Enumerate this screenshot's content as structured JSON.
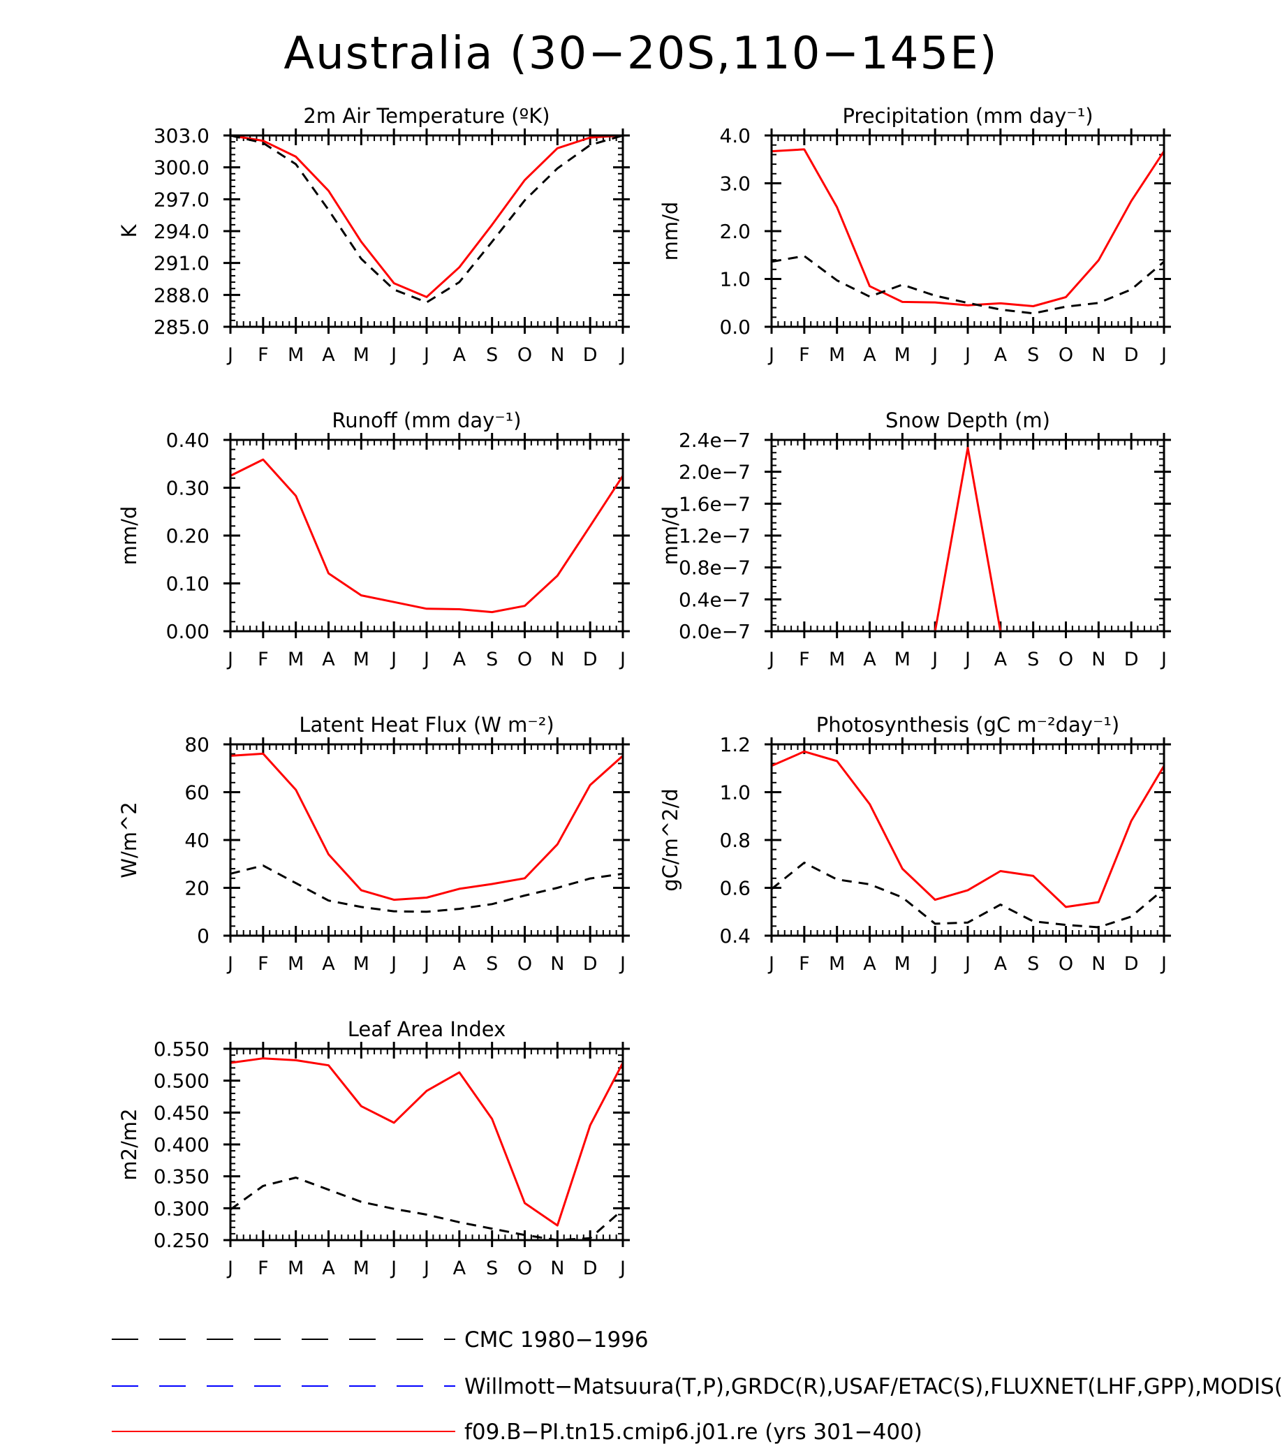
{
  "page_title": "Australia (30−20S,110−145E)",
  "month_ticks": [
    "J",
    "F",
    "M",
    "A",
    "M",
    "J",
    "J",
    "A",
    "S",
    "O",
    "N",
    "D",
    "J"
  ],
  "colors": {
    "cmc": "#000000",
    "obs": "#0000ff",
    "model": "#ff0000"
  },
  "legend": [
    {
      "label": "CMC 1980−1996",
      "style": "dashed",
      "color": "#000000"
    },
    {
      "label": "Willmott−Matsuura(T,P),GRDC(R),USAF/ETAC(S),FLUXNET(LHF,GPP),MODIS(L",
      "style": "dashed",
      "color": "#0000ff"
    },
    {
      "label": "f09.B−PI.tn15.cmip6.j01.re (yrs 301−400)",
      "style": "solid",
      "color": "#ff0000"
    }
  ],
  "chart_data": [
    {
      "type": "line",
      "title": "2m Air Temperature (ºK)",
      "ylabel": "K",
      "ylim": [
        285,
        303
      ],
      "yticks": [
        "285.0",
        "288.0",
        "291.0",
        "294.0",
        "297.0",
        "300.0",
        "303.0"
      ],
      "ytick_values": [
        285,
        288,
        291,
        294,
        297,
        300,
        303
      ],
      "series": [
        {
          "name": "f09.B−PI.tn15.cmip6.j01.re (yrs 301−400)",
          "style": "solid",
          "color": "#ff0000",
          "values": [
            303.0,
            302.5,
            301.0,
            297.8,
            293.0,
            289.1,
            287.8,
            290.6,
            294.6,
            298.8,
            301.8,
            302.8,
            303.0
          ]
        },
        {
          "name": "CMC 1980−1996",
          "style": "dashed",
          "color": "#000000",
          "values": [
            303.0,
            302.3,
            300.3,
            296.0,
            291.4,
            288.5,
            287.3,
            289.2,
            293.0,
            296.9,
            299.9,
            302.1,
            303.0
          ]
        }
      ]
    },
    {
      "type": "line",
      "title": "Precipitation (mm day⁻¹)",
      "ylabel": "mm/d",
      "ylim": [
        0,
        4
      ],
      "yticks": [
        "0.0",
        "1.0",
        "2.0",
        "3.0",
        "4.0"
      ],
      "ytick_values": [
        0,
        1,
        2,
        3,
        4
      ],
      "series": [
        {
          "name": "f09.B−PI.tn15.cmip6.j01.re (yrs 301−400)",
          "style": "solid",
          "color": "#ff0000",
          "values": [
            3.67,
            3.71,
            2.5,
            0.85,
            0.52,
            0.51,
            0.45,
            0.49,
            0.43,
            0.62,
            1.39,
            2.63,
            3.67
          ]
        },
        {
          "name": "CMC 1980−1996",
          "style": "dashed",
          "color": "#000000",
          "values": [
            1.36,
            1.48,
            0.97,
            0.63,
            0.88,
            0.65,
            0.5,
            0.36,
            0.28,
            0.42,
            0.5,
            0.78,
            1.36
          ]
        }
      ]
    },
    {
      "type": "line",
      "title": "Runoff (mm day⁻¹)",
      "ylabel": "mm/d",
      "ylim": [
        0,
        0.4
      ],
      "yticks": [
        "0.00",
        "0.10",
        "0.20",
        "0.30",
        "0.40"
      ],
      "ytick_values": [
        0,
        0.1,
        0.2,
        0.3,
        0.4
      ],
      "series": [
        {
          "name": "f09.B−PI.tn15.cmip6.j01.re (yrs 301−400)",
          "style": "solid",
          "color": "#ff0000",
          "values": [
            0.325,
            0.359,
            0.283,
            0.121,
            0.075,
            0.061,
            0.047,
            0.046,
            0.04,
            0.053,
            0.116,
            0.22,
            0.325
          ]
        },
        {
          "name": "CMC 1980−1996",
          "style": "dashed",
          "color": "#000000",
          "values": [
            0,
            0,
            0,
            0,
            0,
            0,
            0,
            0,
            0,
            0,
            0,
            0,
            0
          ]
        }
      ]
    },
    {
      "type": "line",
      "title": "Snow Depth (m)",
      "ylabel": "mm/d",
      "ylim": [
        0,
        2.4e-07
      ],
      "yticks": [
        "0.0e−7",
        "0.4e−7",
        "0.8e−7",
        "1.2e−7",
        "1.6e−7",
        "2.0e−7",
        "2.4e−7"
      ],
      "ytick_values": [
        0,
        4e-08,
        8e-08,
        1.2e-07,
        1.6e-07,
        2e-07,
        2.4e-07
      ],
      "series": [
        {
          "name": "f09.B−PI.tn15.cmip6.j01.re (yrs 301−400)",
          "style": "solid",
          "color": "#ff0000",
          "values": [
            0,
            0,
            0,
            0,
            0,
            0,
            2.3e-07,
            0,
            0,
            0,
            0,
            0,
            0
          ]
        },
        {
          "name": "CMC 1980−1996",
          "style": "dashed",
          "color": "#000000",
          "values": [
            0,
            0,
            0,
            0,
            0,
            0,
            0,
            0,
            0,
            0,
            0,
            0,
            0
          ]
        }
      ]
    },
    {
      "type": "line",
      "title": "Latent Heat Flux (W m⁻²)",
      "ylabel": "W/m^2",
      "ylim": [
        0,
        80
      ],
      "yticks": [
        "0",
        "20",
        "40",
        "60",
        "80"
      ],
      "ytick_values": [
        0,
        20,
        40,
        60,
        80
      ],
      "series": [
        {
          "name": "f09.B−PI.tn15.cmip6.j01.re (yrs 301−400)",
          "style": "solid",
          "color": "#ff0000",
          "values": [
            75.2,
            76.1,
            61.0,
            34.0,
            19.0,
            15.0,
            15.9,
            19.6,
            21.6,
            24.0,
            38.2,
            63.0,
            75.2
          ]
        },
        {
          "name": "CMC 1980−1996",
          "style": "dashed",
          "color": "#000000",
          "values": [
            25.9,
            29.3,
            22.0,
            14.7,
            12.0,
            10.2,
            10.0,
            11.2,
            13.2,
            16.8,
            20.0,
            23.9,
            25.9
          ]
        }
      ]
    },
    {
      "type": "line",
      "title": "Photosynthesis (gC m⁻²day⁻¹)",
      "ylabel": "gC/m^2/d",
      "ylim": [
        0.4,
        1.2
      ],
      "yticks": [
        "0.4",
        "0.6",
        "0.8",
        "1.0",
        "1.2"
      ],
      "ytick_values": [
        0.4,
        0.6,
        0.8,
        1.0,
        1.2
      ],
      "series": [
        {
          "name": "f09.B−PI.tn15.cmip6.j01.re (yrs 301−400)",
          "style": "solid",
          "color": "#ff0000",
          "values": [
            1.11,
            1.17,
            1.13,
            0.95,
            0.68,
            0.55,
            0.59,
            0.67,
            0.65,
            0.52,
            0.54,
            0.88,
            1.11
          ]
        },
        {
          "name": "CMC 1980−1996",
          "style": "dashed",
          "color": "#000000",
          "values": [
            0.595,
            0.705,
            0.635,
            0.615,
            0.56,
            0.45,
            0.455,
            0.53,
            0.46,
            0.445,
            0.435,
            0.48,
            0.595
          ]
        }
      ]
    },
    {
      "type": "line",
      "title": "Leaf Area Index",
      "ylabel": "m2/m2",
      "ylim": [
        0.25,
        0.55
      ],
      "yticks": [
        "0.250",
        "0.300",
        "0.350",
        "0.400",
        "0.450",
        "0.500",
        "0.550"
      ],
      "ytick_values": [
        0.25,
        0.3,
        0.35,
        0.4,
        0.45,
        0.5,
        0.55
      ],
      "series": [
        {
          "name": "f09.B−PI.tn15.cmip6.j01.re (yrs 301−400)",
          "style": "solid",
          "color": "#ff0000",
          "values": [
            0.528,
            0.535,
            0.532,
            0.524,
            0.46,
            0.434,
            0.484,
            0.513,
            0.44,
            0.308,
            0.273,
            0.43,
            0.528
          ]
        },
        {
          "name": "CMC 1980−1996",
          "style": "dashed",
          "color": "#000000",
          "values": [
            0.298,
            0.335,
            0.348,
            0.329,
            0.31,
            0.299,
            0.29,
            0.278,
            0.268,
            0.258,
            0.25,
            0.253,
            0.298
          ]
        }
      ]
    }
  ]
}
